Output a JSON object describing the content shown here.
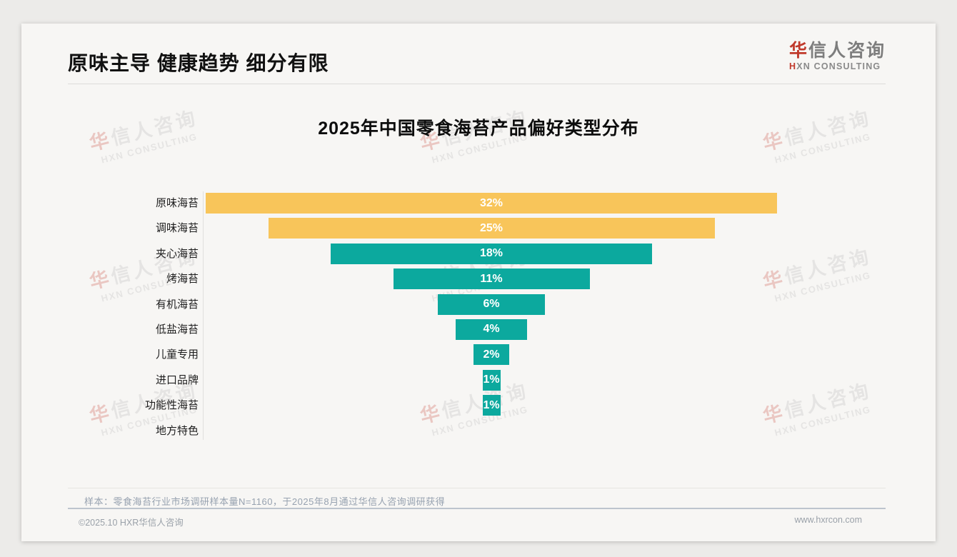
{
  "header": {
    "title": "原味主导 健康趋势 细分有限"
  },
  "logo": {
    "cn_first": "华",
    "cn_rest": "信人咨询",
    "en_first": "H",
    "en_rest": "XN CONSULTING"
  },
  "watermark": {
    "cn_first": "华",
    "cn_rest": "信人咨询",
    "en": "HXN CONSULTING"
  },
  "chart_data": {
    "type": "bar",
    "subtype": "centered-funnel-horizontal",
    "title": "2025年中国零食海苔产品偏好类型分布",
    "categories": [
      "原味海苔",
      "调味海苔",
      "夹心海苔",
      "烤海苔",
      "有机海苔",
      "低盐海苔",
      "儿童专用",
      "进口品牌",
      "功能性海苔",
      "地方特色"
    ],
    "values": [
      32,
      25,
      18,
      11,
      6,
      4,
      2,
      1,
      1,
      0
    ],
    "unit": "%",
    "value_labels": [
      "32%",
      "25%",
      "18%",
      "11%",
      "6%",
      "4%",
      "2%",
      "1%",
      "1%",
      ""
    ],
    "highlight_count": 2,
    "colors": {
      "highlight": "#F8C55A",
      "default": "#0CA99E",
      "value_label": "#FFFFFF"
    },
    "xlim": [
      0,
      32
    ],
    "grid": "off",
    "legend": "none"
  },
  "footnote": {
    "text": "样本：零食海苔行业市场调研样本量N=1160，于2025年8月通过华信人咨询调研获得"
  },
  "footer": {
    "copyright": "©2025.10 HXR华信人咨询",
    "website": "www.hxrcon.com"
  }
}
